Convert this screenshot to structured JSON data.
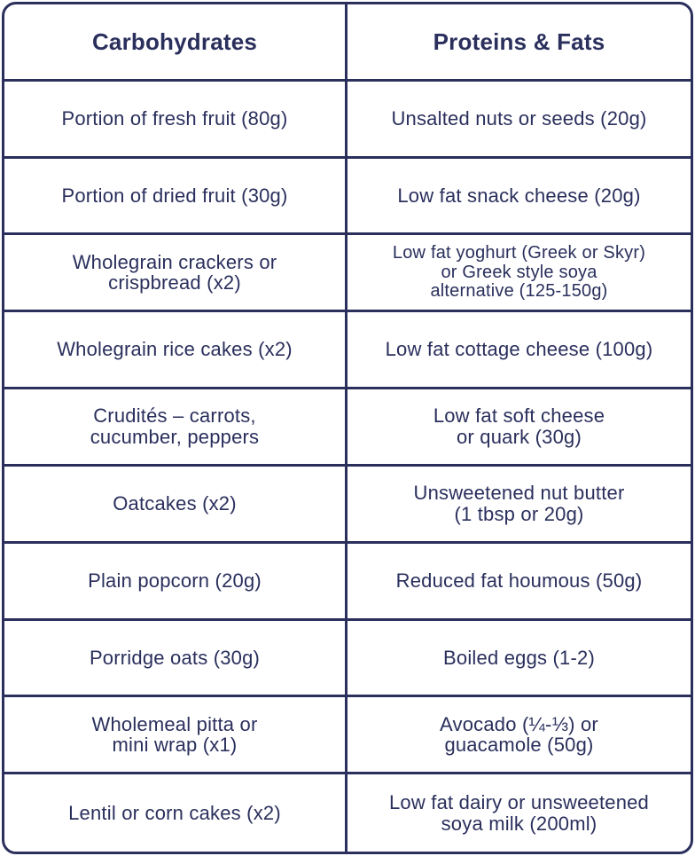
{
  "header": {
    "carbohydrates": "Carbohydrates",
    "proteins_fats": "Proteins & Fats"
  },
  "rows": [
    {
      "carb": "Portion of fresh fruit (80g)",
      "protein": "Unsalted nuts or seeds (20g)"
    },
    {
      "carb": "Portion of dried fruit (30g)",
      "protein": "Low fat snack cheese (20g)"
    },
    {
      "carb": "Wholegrain crackers or\ncrispbread (x2)",
      "protein": "Low fat yoghurt (Greek or Skyr)\nor Greek style soya\nalternative (125-150g)"
    },
    {
      "carb": "Wholegrain rice cakes (x2)",
      "protein": "Low fat cottage cheese (100g)"
    },
    {
      "carb": "Crudités – carrots,\ncucumber, peppers",
      "protein": "Low fat soft cheese\nor quark (30g)"
    },
    {
      "carb": "Oatcakes (x2)",
      "protein": "Unsweetened nut butter\n(1 tbsp or 20g)"
    },
    {
      "carb": "Plain popcorn (20g)",
      "protein": "Reduced fat houmous (50g)"
    },
    {
      "carb": "Porridge oats (30g)",
      "protein": "Boiled eggs (1-2)"
    },
    {
      "carb": "Wholemeal pitta or\nmini wrap (x1)",
      "protein": "Avocado (¼-⅓) or\nguacamole (50g)"
    },
    {
      "carb": "Lentil or corn cakes (x2)",
      "protein": "Low fat dairy or unsweetened\nsoya milk (200ml)"
    }
  ]
}
